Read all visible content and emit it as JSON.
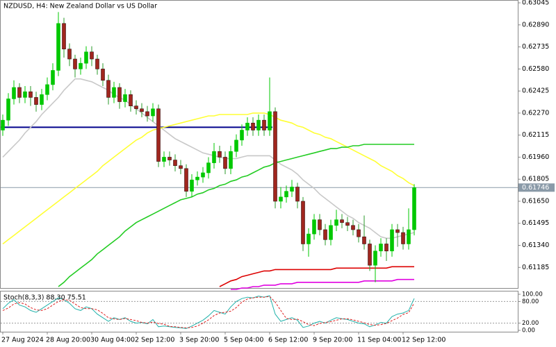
{
  "chart_data": {
    "type": "candlestick",
    "title": "NZDUSD, H4:  New Zealand Dollar vs US Dollar",
    "categories": [
      "27 Aug 2024",
      null,
      null,
      null,
      null,
      null,
      null,
      null,
      "28 Aug 20:00",
      null,
      null,
      null,
      null,
      null,
      null,
      null,
      "30 Aug 04:00",
      null,
      null,
      null,
      null,
      null,
      null,
      null,
      "2 Sep 12:00",
      null,
      null,
      null,
      null,
      null,
      null,
      null,
      "3 Sep 20:00",
      null,
      null,
      null,
      null,
      null,
      null,
      null,
      "5 Sep 04:00",
      null,
      null,
      null,
      null,
      null,
      null,
      null,
      "6 Sep 12:00",
      null,
      null,
      null,
      null,
      null,
      null,
      null,
      "9 Sep 20:00",
      null,
      null,
      null,
      null,
      null,
      null,
      null,
      "11 Sep 04:00",
      null,
      null,
      null,
      null,
      null,
      null,
      null,
      "12 Sep 12:00",
      null,
      null
    ],
    "open": [
      0.6215,
      0.6222,
      0.6237,
      0.6245,
      0.6238,
      0.6242,
      0.6238,
      0.6233,
      0.624,
      0.6247,
      0.6257,
      0.629,
      0.6272,
      0.6265,
      0.6258,
      0.6262,
      0.627,
      0.6265,
      0.6258,
      0.625,
      0.6238,
      0.6245,
      0.6235,
      0.624,
      0.6232,
      0.623,
      0.6228,
      0.6225,
      0.623,
      0.6193,
      0.6196,
      0.6194,
      0.619,
      0.6188,
      0.6172,
      0.618,
      0.6182,
      0.6185,
      0.6192,
      0.62,
      0.6196,
      0.6188,
      0.62,
      0.6208,
      0.6215,
      0.622,
      0.6215,
      0.6222,
      0.6215,
      0.6228,
      0.6165,
      0.6168,
      0.6172,
      0.6175,
      0.6165,
      0.6135,
      0.6142,
      0.6152,
      0.6145,
      0.6138,
      0.6148,
      0.6152,
      0.615,
      0.6148,
      0.6145,
      0.614,
      0.6135,
      0.612,
      0.613,
      0.6135,
      0.613,
      0.6145,
      0.6143,
      0.6135,
      0.6145
    ],
    "high": [
      0.6226,
      0.6241,
      0.625,
      0.6248,
      0.6246,
      0.6246,
      0.6242,
      0.6244,
      0.6252,
      0.6262,
      0.6298,
      0.6294,
      0.6276,
      0.6268,
      0.6266,
      0.6274,
      0.6274,
      0.6268,
      0.6262,
      0.6254,
      0.6249,
      0.6248,
      0.6244,
      0.6243,
      0.6236,
      0.6234,
      0.6232,
      0.6234,
      0.6233,
      0.62,
      0.62,
      0.6198,
      0.6194,
      0.6191,
      0.6184,
      0.6186,
      0.6189,
      0.6196,
      0.6206,
      0.6204,
      0.62,
      0.6204,
      0.6212,
      0.6219,
      0.6224,
      0.6224,
      0.6226,
      0.6226,
      0.6252,
      0.6231,
      0.6175,
      0.6176,
      0.618,
      0.6178,
      0.6168,
      0.6146,
      0.6156,
      0.6156,
      0.6149,
      0.6152,
      0.6159,
      0.6156,
      0.6154,
      0.6152,
      0.6149,
      0.6155,
      0.6138,
      0.6134,
      0.6139,
      0.6139,
      0.6149,
      0.6149,
      0.6147,
      0.616,
      0.6177
    ],
    "low": [
      0.6211,
      0.6218,
      0.6233,
      0.6234,
      0.6234,
      0.6232,
      0.6228,
      0.6229,
      0.6236,
      0.6243,
      0.6253,
      0.6266,
      0.626,
      0.6252,
      0.6254,
      0.6258,
      0.626,
      0.6254,
      0.6246,
      0.6233,
      0.6234,
      0.623,
      0.6231,
      0.6228,
      0.6226,
      0.6224,
      0.6221,
      0.6221,
      0.6189,
      0.6189,
      0.619,
      0.6186,
      0.6184,
      0.6168,
      0.6168,
      0.6176,
      0.6178,
      0.6181,
      0.6188,
      0.6192,
      0.6184,
      0.6184,
      0.6196,
      0.6204,
      0.6211,
      0.6211,
      0.6211,
      0.6211,
      0.6211,
      0.616,
      0.616,
      0.6164,
      0.6168,
      0.616,
      0.613,
      0.6126,
      0.6138,
      0.6141,
      0.6134,
      0.6134,
      0.6144,
      0.6146,
      0.6144,
      0.6141,
      0.6136,
      0.6131,
      0.6116,
      0.6108,
      0.6126,
      0.6123,
      0.6126,
      0.6133,
      0.6131,
      0.6131,
      0.6141
    ],
    "close": [
      0.6222,
      0.6237,
      0.6245,
      0.6238,
      0.6242,
      0.6238,
      0.6233,
      0.624,
      0.6247,
      0.6257,
      0.629,
      0.6272,
      0.6265,
      0.6258,
      0.6262,
      0.627,
      0.6265,
      0.6258,
      0.625,
      0.6238,
      0.6245,
      0.6235,
      0.624,
      0.6232,
      0.623,
      0.6228,
      0.6225,
      0.623,
      0.6193,
      0.6196,
      0.6194,
      0.619,
      0.6188,
      0.6172,
      0.618,
      0.6182,
      0.6185,
      0.6192,
      0.62,
      0.6196,
      0.6188,
      0.62,
      0.6208,
      0.6215,
      0.622,
      0.6215,
      0.6222,
      0.6215,
      0.6228,
      0.6165,
      0.6168,
      0.6172,
      0.6175,
      0.6165,
      0.6135,
      0.6142,
      0.6152,
      0.6145,
      0.6138,
      0.6148,
      0.6152,
      0.615,
      0.6148,
      0.6145,
      0.614,
      0.6135,
      0.612,
      0.613,
      0.6135,
      0.613,
      0.6145,
      0.6143,
      0.6135,
      0.6145,
      0.61746
    ],
    "up_color": "#00c800",
    "down_color": "#a0261e",
    "ylim": [
      0.6104,
      0.6306
    ],
    "yticks": [
      0.63045,
      {
        "value": 0.6289,
        "label": "0.62890"
      },
      0.62735,
      {
        "value": 0.6258,
        "label": "0.62580"
      },
      0.62425,
      {
        "value": 0.6227,
        "label": "0.62270"
      },
      0.62115,
      {
        "value": 0.6196,
        "label": "0.61960"
      },
      0.61805,
      {
        "value": 0.6165,
        "label": "0.61650"
      },
      0.61495,
      {
        "value": 0.6134,
        "label": "0.61340"
      },
      0.61185
    ],
    "current_price": 0.61746,
    "level": {
      "value": 0.6217,
      "color": "#00008b"
    },
    "overlays": [
      {
        "color": "#c8c8c8",
        "values": [
          0.6196,
          0.62,
          0.6204,
          0.6208,
          0.6213,
          0.6217,
          0.6221,
          0.6226,
          0.623,
          0.6234,
          0.6238,
          0.6243,
          0.6247,
          0.6251,
          0.6251,
          0.625,
          0.6249,
          0.6247,
          0.6245,
          0.6243,
          0.624,
          0.6238,
          0.6236,
          0.6233,
          0.623,
          0.6227,
          0.6224,
          0.6221,
          0.6218,
          0.6215,
          0.6212,
          0.6209,
          0.6207,
          0.6205,
          0.6203,
          0.6201,
          0.6199,
          0.6198,
          0.6197,
          0.6196,
          0.6195,
          0.6195,
          0.6195,
          0.6196,
          0.6197,
          0.6197,
          0.6197,
          0.6197,
          0.6197,
          0.6194,
          0.6191,
          0.6189,
          0.6187,
          0.6184,
          0.618,
          0.6177,
          0.6174,
          0.617,
          0.6167,
          0.6164,
          0.6161,
          0.6158,
          0.6155,
          0.6153,
          0.615,
          0.6148,
          0.6146,
          0.6143,
          0.614,
          0.6139,
          0.6139,
          0.614,
          0.6141,
          0.6142,
          0.6143
        ]
      },
      {
        "color": "#ffff33",
        "values": [
          0.6135,
          0.6138,
          0.6141,
          0.6144,
          0.6147,
          0.615,
          0.6153,
          0.6156,
          0.6159,
          0.6162,
          0.6165,
          0.6168,
          0.6171,
          0.6174,
          0.6177,
          0.618,
          0.6183,
          0.6186,
          0.619,
          0.6193,
          0.6196,
          0.6199,
          0.6202,
          0.6205,
          0.6208,
          0.621,
          0.6213,
          0.6215,
          0.6216,
          0.6217,
          0.6218,
          0.6219,
          0.622,
          0.6221,
          0.6222,
          0.6223,
          0.6224,
          0.6225,
          0.6225,
          0.6226,
          0.6226,
          0.6226,
          0.6226,
          0.6226,
          0.6226,
          0.6227,
          0.6227,
          0.6227,
          0.6226,
          0.6224,
          0.6222,
          0.6221,
          0.622,
          0.6218,
          0.6217,
          0.6215,
          0.6213,
          0.6212,
          0.621,
          0.6209,
          0.6207,
          0.6205,
          0.6203,
          0.6201,
          0.6199,
          0.6197,
          0.6195,
          0.6193,
          0.619,
          0.6188,
          0.6186,
          0.6183,
          0.6181,
          0.6178,
          0.6176
        ]
      },
      {
        "color": "#22cc22",
        "values": [
          null,
          null,
          null,
          null,
          null,
          null,
          null,
          null,
          null,
          null,
          0.6105,
          0.6108,
          0.6112,
          0.6115,
          0.6118,
          0.6121,
          0.6124,
          0.6128,
          0.6131,
          0.6134,
          0.6137,
          0.614,
          0.6144,
          0.6147,
          0.615,
          0.6152,
          0.6154,
          0.6156,
          0.6158,
          0.616,
          0.6162,
          0.6164,
          0.6166,
          0.6167,
          0.6168,
          0.617,
          0.6171,
          0.6173,
          0.6174,
          0.6176,
          0.6177,
          0.6179,
          0.618,
          0.6182,
          0.6183,
          0.6185,
          0.6187,
          0.6189,
          0.619,
          0.6192,
          0.6193,
          0.6194,
          0.6195,
          0.6196,
          0.6197,
          0.6198,
          0.6199,
          0.62,
          0.6201,
          0.6202,
          0.6202,
          0.6203,
          0.6203,
          0.6204,
          0.6204,
          0.6205,
          0.6205,
          0.6205,
          0.6205,
          0.6205,
          0.6205,
          0.6205,
          0.6205,
          0.6205,
          0.6205
        ]
      },
      {
        "color": "#dd0000",
        "values": [
          null,
          null,
          null,
          null,
          null,
          null,
          null,
          null,
          null,
          null,
          null,
          null,
          null,
          null,
          null,
          null,
          null,
          null,
          null,
          null,
          null,
          null,
          null,
          null,
          null,
          null,
          null,
          null,
          null,
          null,
          null,
          null,
          null,
          null,
          null,
          null,
          null,
          null,
          null,
          0.6105,
          0.6107,
          0.6109,
          0.611,
          0.6112,
          0.6113,
          0.6114,
          0.6115,
          0.6116,
          0.6116,
          0.6117,
          0.6117,
          0.6117,
          0.6117,
          0.6117,
          0.6117,
          0.6117,
          0.6117,
          0.6117,
          0.6117,
          0.6117,
          0.6118,
          0.6118,
          0.6118,
          0.6118,
          0.6118,
          0.6118,
          0.6118,
          0.6118,
          0.6118,
          0.6118,
          0.6119,
          0.6119,
          0.6119,
          0.6119,
          0.6119
        ]
      },
      {
        "color": "#e000e0",
        "values": [
          null,
          null,
          null,
          null,
          null,
          null,
          null,
          null,
          null,
          null,
          null,
          null,
          null,
          null,
          null,
          null,
          null,
          null,
          null,
          null,
          null,
          null,
          null,
          null,
          null,
          null,
          null,
          null,
          null,
          null,
          null,
          null,
          null,
          null,
          null,
          null,
          null,
          null,
          null,
          null,
          null,
          0.6103,
          0.6103,
          0.6104,
          0.6104,
          0.6105,
          0.6105,
          0.6106,
          0.6106,
          0.6106,
          0.6107,
          0.6107,
          0.6107,
          0.6108,
          0.6108,
          0.6108,
          0.6108,
          0.6108,
          0.6108,
          0.6108,
          0.6108,
          0.6108,
          0.6108,
          0.6108,
          0.6108,
          0.6109,
          0.6109,
          0.6109,
          0.6109,
          0.6109,
          0.6109,
          0.611,
          0.611,
          0.611,
          0.611
        ]
      }
    ],
    "indicator": {
      "title": "Stoch(8,3,3) 88.30 75.51",
      "ylim": [
        0,
        100
      ],
      "yticks": [
        {
          "value": 100,
          "label": "100.00"
        },
        {
          "value": 80,
          "label": "80.00"
        },
        {
          "value": 20,
          "label": "20.00"
        },
        {
          "value": 0,
          "label": "0.00"
        }
      ],
      "levels": [
        80,
        20
      ],
      "series": [
        {
          "color": "#20b2aa",
          "values": [
            60,
            75,
            85,
            70,
            65,
            55,
            50,
            60,
            70,
            80,
            90,
            85,
            75,
            60,
            55,
            65,
            60,
            45,
            35,
            25,
            35,
            30,
            35,
            25,
            20,
            22,
            18,
            30,
            10,
            12,
            10,
            8,
            7,
            5,
            12,
            20,
            28,
            40,
            55,
            50,
            45,
            65,
            80,
            88,
            92,
            90,
            95,
            92,
            96,
            45,
            25,
            30,
            35,
            28,
            8,
            12,
            20,
            25,
            20,
            28,
            35,
            32,
            30,
            25,
            20,
            18,
            10,
            15,
            22,
            20,
            38,
            45,
            48,
            55,
            88.3
          ]
        },
        {
          "color": "#e02020",
          "dashed": true,
          "values": [
            55,
            62,
            73,
            77,
            73,
            63,
            57,
            55,
            60,
            70,
            80,
            85,
            83,
            73,
            63,
            60,
            60,
            57,
            47,
            35,
            32,
            30,
            33,
            30,
            27,
            22,
            20,
            23,
            19,
            17,
            11,
            10,
            8,
            7,
            8,
            12,
            20,
            29,
            41,
            48,
            50,
            53,
            63,
            78,
            87,
            90,
            92,
            92,
            94,
            78,
            55,
            33,
            30,
            31,
            24,
            16,
            13,
            19,
            22,
            24,
            28,
            32,
            32,
            29,
            25,
            21,
            16,
            14,
            16,
            19,
            27,
            34,
            44,
            49,
            75.51
          ]
        }
      ]
    }
  }
}
